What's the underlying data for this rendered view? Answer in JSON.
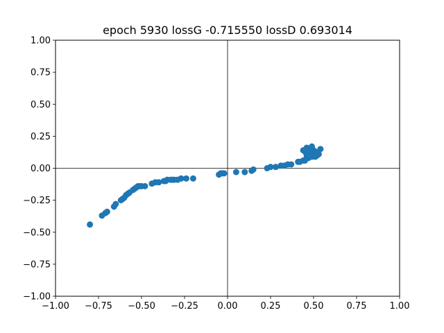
{
  "chart_data": {
    "type": "scatter",
    "title": "epoch 5930 lossG -0.715550 lossD 0.693014",
    "xlabel": "",
    "ylabel": "",
    "xlim": [
      -1.0,
      1.0
    ],
    "ylim": [
      -1.0,
      1.0
    ],
    "xticks": [
      "−1.00",
      "−0.75",
      "−0.50",
      "−0.25",
      "0.00",
      "0.25",
      "0.50",
      "0.75",
      "1.00"
    ],
    "yticks": [
      "−1.00",
      "−0.75",
      "−0.50",
      "−0.25",
      "0.00",
      "0.25",
      "0.50",
      "0.75",
      "1.00"
    ],
    "axis_lines": {
      "x": 0,
      "y": 0
    },
    "grid": false,
    "marker_color": "#1f77b4",
    "points": [
      [
        -0.8,
        -0.44
      ],
      [
        -0.73,
        -0.37
      ],
      [
        -0.71,
        -0.35
      ],
      [
        -0.7,
        -0.34
      ],
      [
        -0.66,
        -0.3
      ],
      [
        -0.65,
        -0.28
      ],
      [
        -0.62,
        -0.25
      ],
      [
        -0.61,
        -0.24
      ],
      [
        -0.6,
        -0.23
      ],
      [
        -0.59,
        -0.21
      ],
      [
        -0.58,
        -0.2
      ],
      [
        -0.57,
        -0.19
      ],
      [
        -0.55,
        -0.17
      ],
      [
        -0.54,
        -0.16
      ],
      [
        -0.53,
        -0.15
      ],
      [
        -0.52,
        -0.14
      ],
      [
        -0.51,
        -0.14
      ],
      [
        -0.5,
        -0.14
      ],
      [
        -0.48,
        -0.14
      ],
      [
        -0.44,
        -0.12
      ],
      [
        -0.42,
        -0.11
      ],
      [
        -0.4,
        -0.11
      ],
      [
        -0.37,
        -0.1
      ],
      [
        -0.36,
        -0.1
      ],
      [
        -0.35,
        -0.09
      ],
      [
        -0.33,
        -0.09
      ],
      [
        -0.32,
        -0.09
      ],
      [
        -0.31,
        -0.09
      ],
      [
        -0.29,
        -0.09
      ],
      [
        -0.27,
        -0.08
      ],
      [
        -0.24,
        -0.08
      ],
      [
        -0.2,
        -0.08
      ],
      [
        -0.05,
        -0.05
      ],
      [
        -0.04,
        -0.04
      ],
      [
        -0.03,
        -0.04
      ],
      [
        -0.02,
        -0.04
      ],
      [
        0.05,
        -0.03
      ],
      [
        0.1,
        -0.03
      ],
      [
        0.14,
        -0.02
      ],
      [
        0.15,
        -0.01
      ],
      [
        0.23,
        0.0
      ],
      [
        0.25,
        0.01
      ],
      [
        0.28,
        0.01
      ],
      [
        0.31,
        0.02
      ],
      [
        0.33,
        0.02
      ],
      [
        0.35,
        0.03
      ],
      [
        0.37,
        0.03
      ],
      [
        0.41,
        0.05
      ],
      [
        0.42,
        0.05
      ],
      [
        0.44,
        0.06
      ],
      [
        0.45,
        0.06
      ],
      [
        0.46,
        0.08
      ],
      [
        0.47,
        0.08
      ],
      [
        0.48,
        0.09
      ],
      [
        0.49,
        0.09
      ],
      [
        0.5,
        0.1
      ],
      [
        0.51,
        0.09
      ],
      [
        0.52,
        0.1
      ],
      [
        0.53,
        0.11
      ],
      [
        0.44,
        0.14
      ],
      [
        0.46,
        0.16
      ],
      [
        0.47,
        0.12
      ],
      [
        0.48,
        0.13
      ],
      [
        0.49,
        0.17
      ],
      [
        0.5,
        0.14
      ],
      [
        0.5,
        0.12
      ],
      [
        0.51,
        0.13
      ],
      [
        0.52,
        0.12
      ],
      [
        0.54,
        0.15
      ],
      [
        0.46,
        0.1
      ],
      [
        0.47,
        0.11
      ],
      [
        0.45,
        0.13
      ]
    ]
  }
}
